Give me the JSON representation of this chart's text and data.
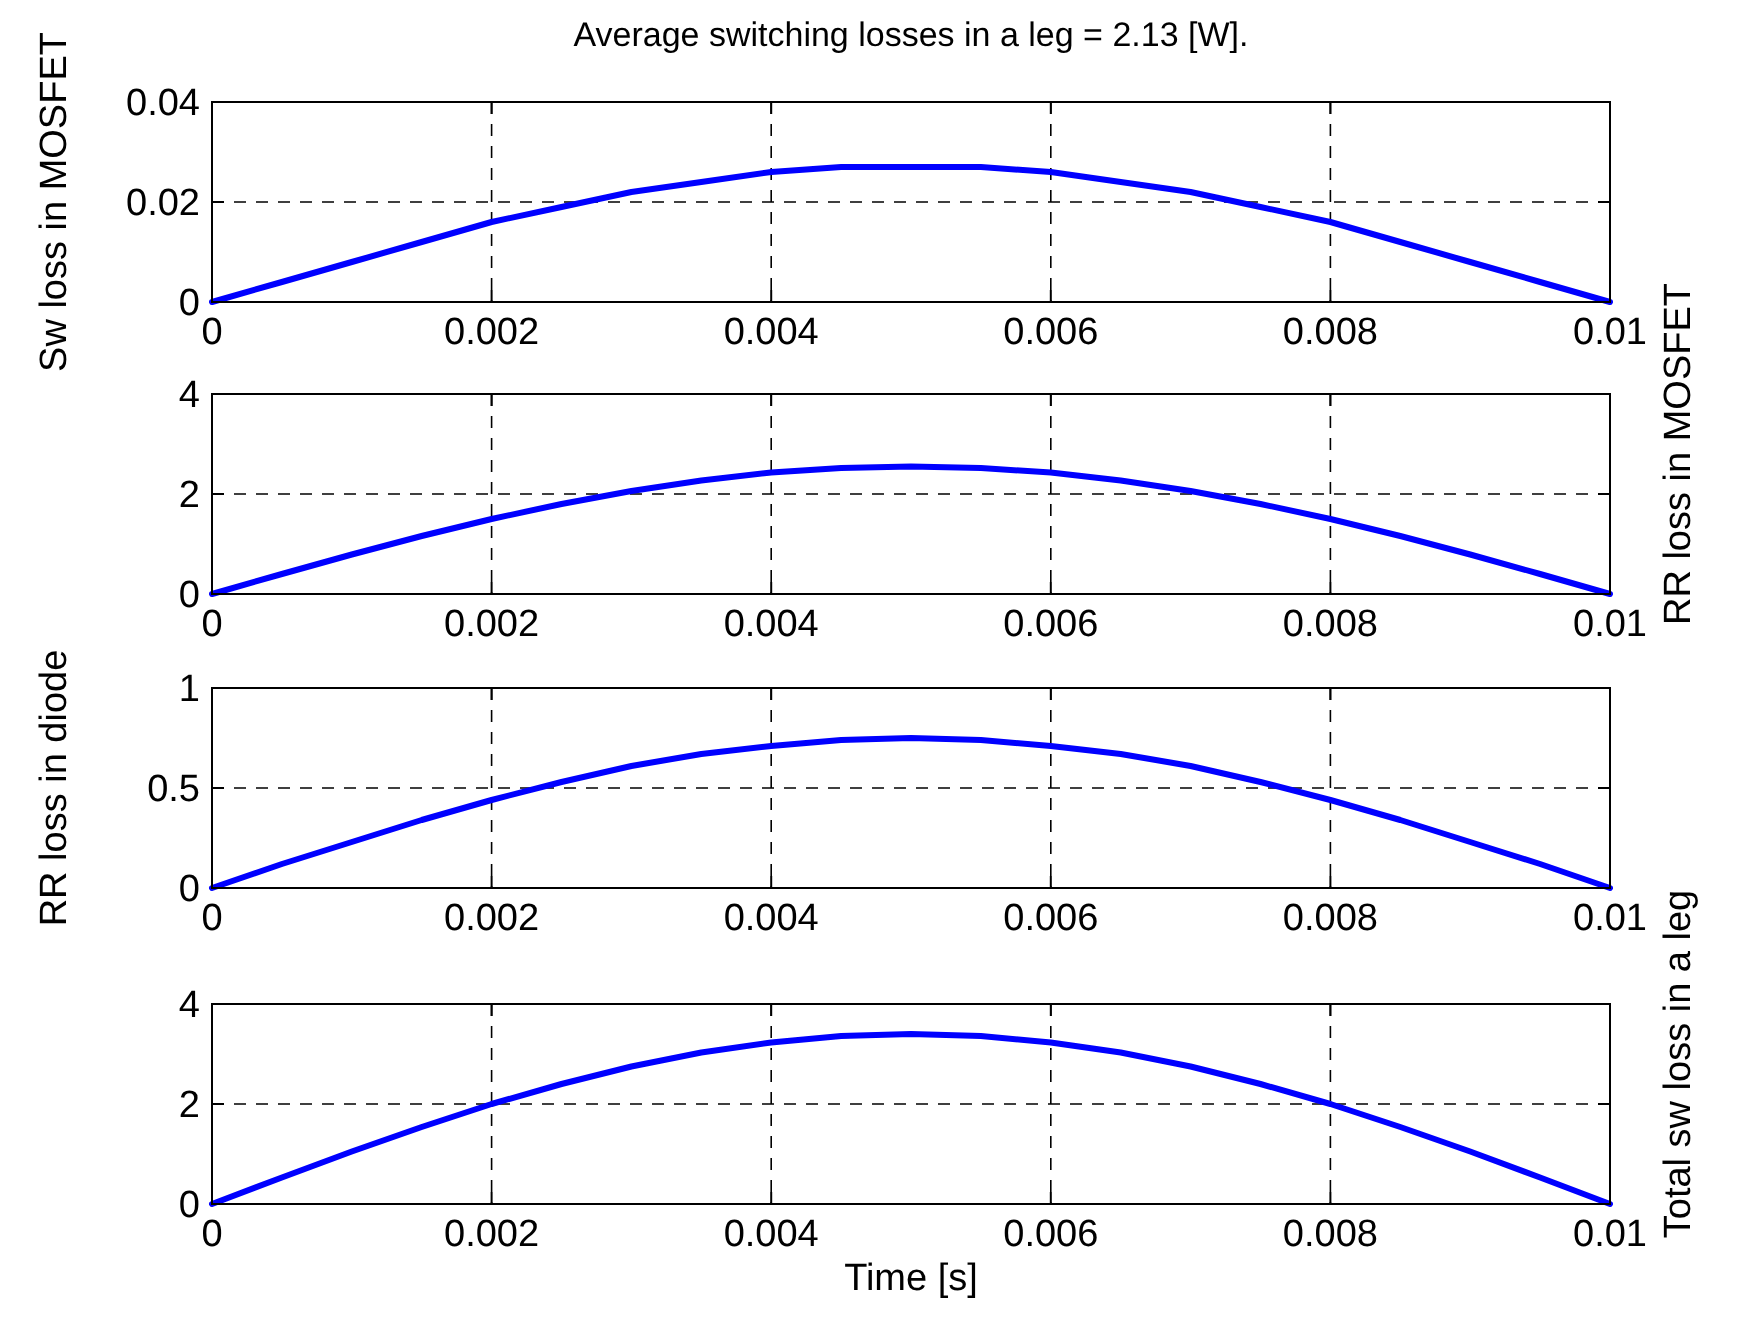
{
  "chart_data": [
    {
      "type": "line",
      "title": "Average switching losses in a leg = 2.13 [W].",
      "ylabel": "Sw loss in MOSFET",
      "x": [
        0,
        0.0005,
        0.001,
        0.0015,
        0.002,
        0.0025,
        0.003,
        0.0035,
        0.004,
        0.0045,
        0.005,
        0.0055,
        0.006,
        0.0065,
        0.007,
        0.0075,
        0.008,
        0.0085,
        0.009,
        0.0095,
        0.01
      ],
      "series": [
        {
          "color": "#0000ff",
          "values": [
            0,
            0.004,
            0.008,
            0.012,
            0.016,
            0.019,
            0.022,
            0.024,
            0.026,
            0.027,
            0.027,
            0.027,
            0.026,
            0.024,
            0.022,
            0.019,
            0.016,
            0.012,
            0.008,
            0.004,
            0
          ]
        }
      ],
      "xlim": [
        0,
        0.01
      ],
      "xticks": [
        0,
        0.002,
        0.004,
        0.006,
        0.008,
        0.01
      ],
      "ylim": [
        0,
        0.04
      ],
      "yticks": [
        0,
        0.02,
        0.04
      ],
      "grid": true,
      "marker": "none",
      "line_style": "solid"
    },
    {
      "type": "line",
      "y2label": "RR loss in MOSFET",
      "x": [
        0,
        0.0005,
        0.001,
        0.0015,
        0.002,
        0.0025,
        0.003,
        0.0035,
        0.004,
        0.0045,
        0.005,
        0.0055,
        0.006,
        0.0065,
        0.007,
        0.0075,
        0.008,
        0.0085,
        0.009,
        0.0095,
        0.01
      ],
      "series": [
        {
          "color": "#0000ff",
          "values": [
            0,
            0.4,
            0.79,
            1.16,
            1.5,
            1.8,
            2.06,
            2.27,
            2.43,
            2.52,
            2.55,
            2.52,
            2.43,
            2.27,
            2.06,
            1.8,
            1.5,
            1.16,
            0.79,
            0.4,
            0
          ]
        }
      ],
      "xlim": [
        0,
        0.01
      ],
      "xticks": [
        0,
        0.002,
        0.004,
        0.006,
        0.008,
        0.01
      ],
      "ylim": [
        0,
        4
      ],
      "yticks": [
        0,
        2,
        4
      ],
      "grid": true,
      "marker": "none",
      "line_style": "solid"
    },
    {
      "type": "line",
      "ylabel": "RR loss in diode",
      "x": [
        0,
        0.0005,
        0.001,
        0.0015,
        0.002,
        0.0025,
        0.003,
        0.0035,
        0.004,
        0.0045,
        0.005,
        0.0055,
        0.006,
        0.0065,
        0.007,
        0.0075,
        0.008,
        0.0085,
        0.009,
        0.0095,
        0.01
      ],
      "series": [
        {
          "color": "#0000ff",
          "values": [
            0,
            0.12,
            0.23,
            0.34,
            0.44,
            0.53,
            0.61,
            0.67,
            0.71,
            0.74,
            0.75,
            0.74,
            0.71,
            0.67,
            0.61,
            0.53,
            0.44,
            0.34,
            0.23,
            0.12,
            0
          ]
        }
      ],
      "xlim": [
        0,
        0.01
      ],
      "xticks": [
        0,
        0.002,
        0.004,
        0.006,
        0.008,
        0.01
      ],
      "ylim": [
        0,
        1
      ],
      "yticks": [
        0,
        0.5,
        1
      ],
      "grid": true,
      "marker": "none",
      "line_style": "solid"
    },
    {
      "type": "line",
      "xlabel": "Time [s]",
      "y2label": "Total sw loss in a leg",
      "x": [
        0,
        0.0005,
        0.001,
        0.0015,
        0.002,
        0.0025,
        0.003,
        0.0035,
        0.004,
        0.0045,
        0.005,
        0.0055,
        0.006,
        0.0065,
        0.007,
        0.0075,
        0.008,
        0.0085,
        0.009,
        0.0095,
        0.01
      ],
      "series": [
        {
          "color": "#0000ff",
          "values": [
            0,
            0.53,
            1.05,
            1.54,
            2.0,
            2.4,
            2.75,
            3.03,
            3.23,
            3.36,
            3.4,
            3.36,
            3.23,
            3.03,
            2.75,
            2.4,
            2.0,
            1.54,
            1.05,
            0.53,
            0
          ]
        }
      ],
      "xlim": [
        0,
        0.01
      ],
      "xticks": [
        0,
        0.002,
        0.004,
        0.006,
        0.008,
        0.01
      ],
      "ylim": [
        0,
        4
      ],
      "yticks": [
        0,
        2,
        4
      ],
      "grid": true,
      "marker": "none",
      "line_style": "solid"
    }
  ]
}
